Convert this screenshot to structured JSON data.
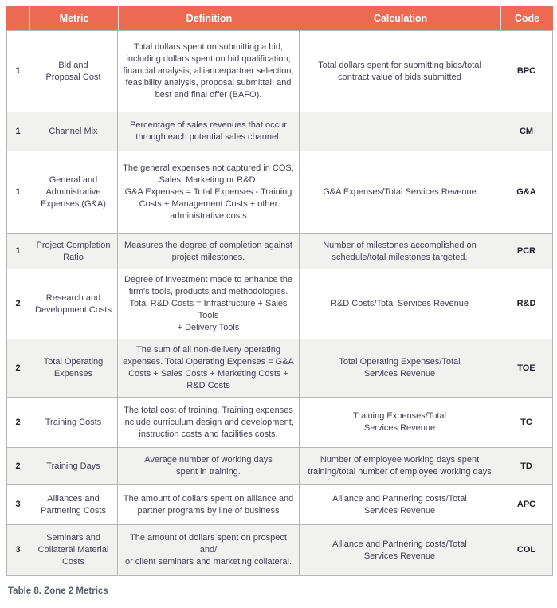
{
  "caption": "Table 8. Zone 2 Metrics",
  "colors": {
    "header_bg": "#ec6a52",
    "header_text": "#ffffff",
    "alt_row_bg": "#f1f1ef",
    "border": "#b5b5b5",
    "body_text": "#414155",
    "strong_text": "#20222c",
    "caption_text": "#55606a"
  },
  "table": {
    "columns": [
      "",
      "Metric",
      "Definition",
      "Calculation",
      "Code"
    ],
    "rows": [
      {
        "zone": "1",
        "metric": "Bid and\nProposal Cost",
        "definition": "Total dollars spent on submitting a bid,\nincluding dollars spent on bid qualification,\nfinancial analysis, alliance/partner selection,\nfeasibility analysis, proposal submittal, and\nbest and final offer (BAFO).",
        "calculation": "Total dollars spent for submitting bids/total\ncontract value of bids submitted",
        "code": "BPC"
      },
      {
        "zone": "1",
        "metric": "Channel Mix",
        "definition": "Percentage of sales revenues that occur\nthrough each potential sales channel.",
        "calculation": "",
        "code": "CM"
      },
      {
        "zone": "1",
        "metric": "General and\nAdministrative\nExpenses (G&A)",
        "definition": "The general expenses not captured in COS,\nSales, Marketing or R&D.\nG&A Expenses = Total Expenses - Training\nCosts + Management Costs + other\nadministrative costs",
        "calculation": "G&A Expenses/Total Services Revenue",
        "code": "G&A"
      },
      {
        "zone": "1",
        "metric": "Project Completion\nRatio",
        "definition": "Measures the degree of completion against\nproject milestones.",
        "calculation": "Number of milestones accomplished on\nschedule/total milestones targeted.",
        "code": "PCR"
      },
      {
        "zone": "2",
        "metric": "Research and\nDevelopment Costs",
        "definition": "Degree of investment made to enhance the\nfirm's tools, products and methodologies.\nTotal R&D Costs = Infrastructure + Sales Tools\n+ Delivery Tools",
        "calculation": "R&D Costs/Total Services Revenue",
        "code": "R&D"
      },
      {
        "zone": "2",
        "metric": "Total Operating\nExpenses",
        "definition": "The sum of all non-delivery operating\nexpenses. Total Operating Expenses = G&A\nCosts + Sales Costs + Marketing Costs +\nR&D Costs",
        "calculation": "Total Operating Expenses/Total\nServices Revenue",
        "code": "TOE"
      },
      {
        "zone": "2",
        "metric": "Training Costs",
        "definition": "The total cost of training. Training expenses\ninclude curriculum design and development,\ninstruction costs and facilities costs.",
        "calculation": "Training Expenses/Total\nServices Revenue",
        "code": "TC"
      },
      {
        "zone": "2",
        "metric": "Training Days",
        "definition": "Average number of working days\nspent in training.",
        "calculation": "Number of employee working days spent\ntraining/total number of employee working days",
        "code": "TD"
      },
      {
        "zone": "3",
        "metric": "Alliances and\nPartnering Costs",
        "definition": "The amount of dollars spent on alliance and\npartner programs by line of business",
        "calculation": "Alliance and Partnering costs/Total\nServices Revenue",
        "code": "APC"
      },
      {
        "zone": "3",
        "metric": "Seminars and\nCollateral Material\nCosts",
        "definition": "The amount of dollars spent on prospect and/\nor client seminars and marketing collateral.",
        "calculation": "Alliance and Partnering costs/Total\nServices Revenue",
        "code": "COL"
      }
    ]
  }
}
